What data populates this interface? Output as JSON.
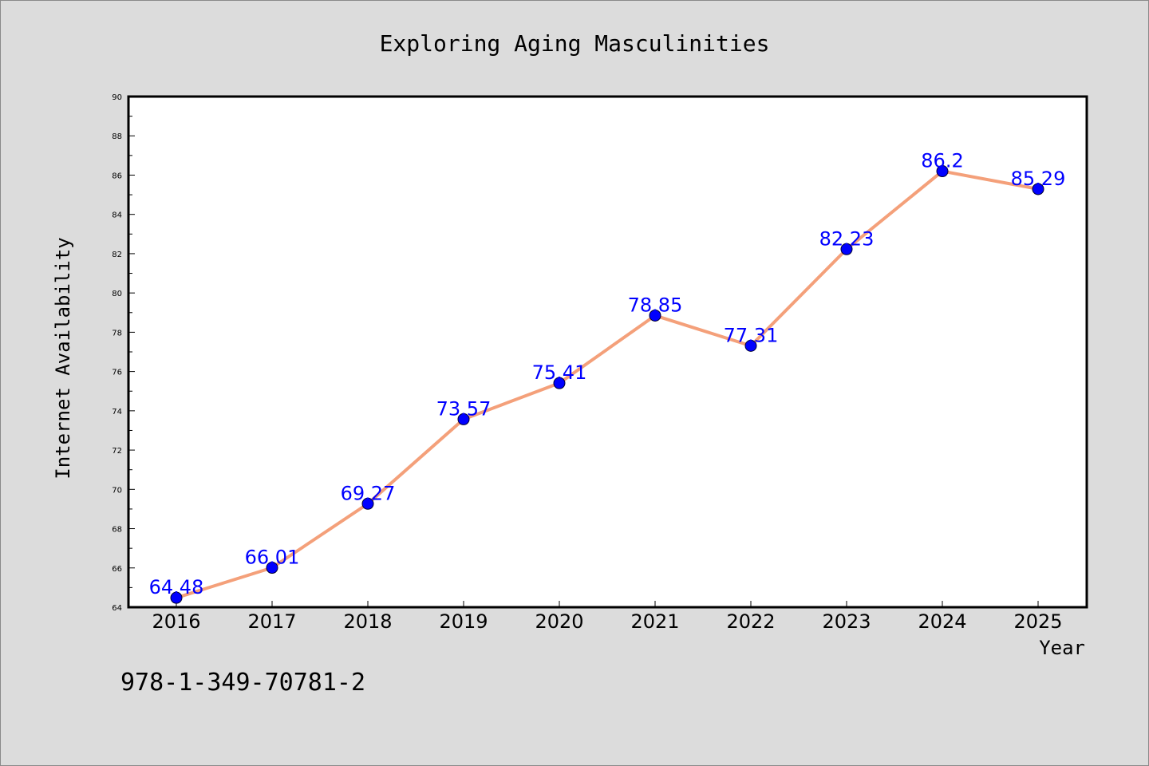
{
  "chart_data": {
    "type": "line",
    "title": "Exploring Aging Masculinities",
    "xlabel": "Year",
    "ylabel": "Internet Availability",
    "categories": [
      "2016",
      "2017",
      "2018",
      "2019",
      "2020",
      "2021",
      "2022",
      "2023",
      "2024",
      "2025"
    ],
    "series": [
      {
        "values": [
          64.48,
          66.01,
          69.27,
          73.57,
          75.41,
          78.85,
          77.31,
          82.23,
          86.2,
          85.29
        ],
        "data_labels": [
          "64.48",
          "66.01",
          "69.27",
          "73.57",
          "75.41",
          "78.85",
          "77.31",
          "82.23",
          "86.2",
          "85.29"
        ],
        "line_color": "#f4a07a",
        "marker_color": "#0000ff"
      }
    ],
    "ylim": [
      64,
      90
    ],
    "yticks": [
      64,
      66,
      68,
      70,
      72,
      74,
      76,
      78,
      80,
      82,
      84,
      86,
      88,
      90
    ],
    "grid": false,
    "legend": "none",
    "footnote": "978-1-349-70781-2"
  }
}
